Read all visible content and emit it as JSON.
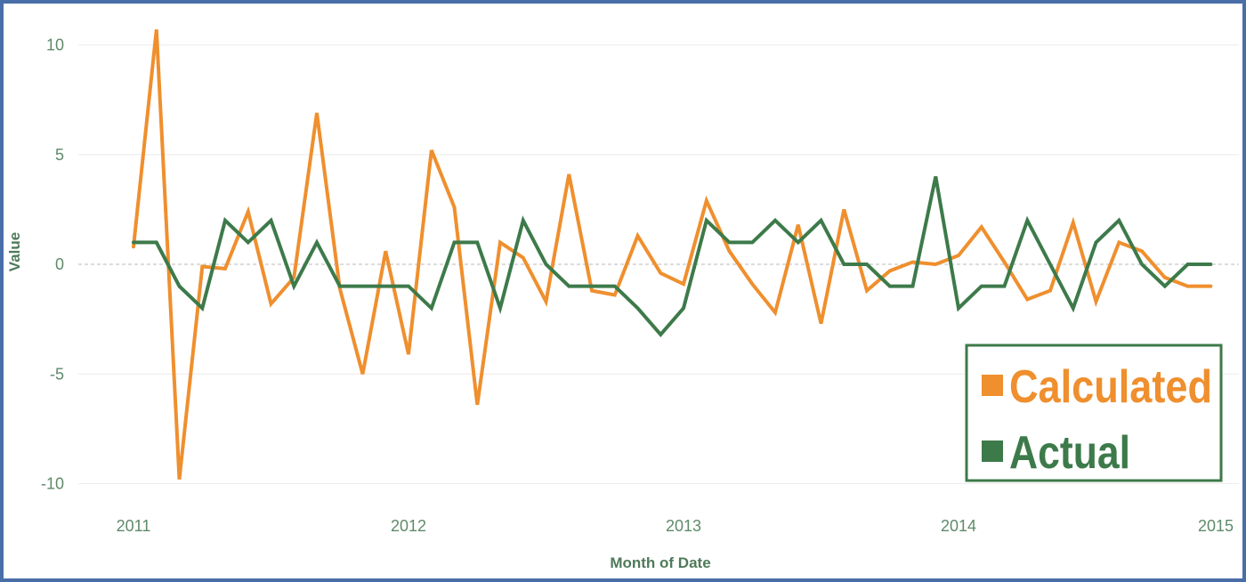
{
  "chart_data": {
    "type": "line",
    "xlabel": "Month of Date",
    "ylabel": "Value",
    "x_ticks": [
      "2011",
      "2012",
      "2013",
      "2014",
      "2015"
    ],
    "y_ticks": [
      "10",
      "5",
      "0",
      "-5",
      "-10"
    ],
    "xlim": [
      "2010-11",
      "2015-01"
    ],
    "ylim": [
      -11,
      11
    ],
    "grid": "horizontal",
    "legend_position": "bottom-right",
    "x": [
      "2011-01",
      "2011-02",
      "2011-03",
      "2011-04",
      "2011-05",
      "2011-06",
      "2011-07",
      "2011-08",
      "2011-09",
      "2011-10",
      "2011-11",
      "2011-12",
      "2012-01",
      "2012-02",
      "2012-03",
      "2012-04",
      "2012-05",
      "2012-06",
      "2012-07",
      "2012-08",
      "2012-09",
      "2012-10",
      "2012-11",
      "2012-12",
      "2013-01",
      "2013-02",
      "2013-03",
      "2013-04",
      "2013-05",
      "2013-06",
      "2013-07",
      "2013-08",
      "2013-09",
      "2013-10",
      "2013-11",
      "2013-12",
      "2014-01",
      "2014-02",
      "2014-03",
      "2014-04",
      "2014-05",
      "2014-06",
      "2014-07",
      "2014-08",
      "2014-09",
      "2014-10",
      "2014-11",
      "2014-12"
    ],
    "series": [
      {
        "name": "Calculated",
        "color": "#ef8f2e",
        "values": [
          0.8,
          10.7,
          -9.8,
          -0.1,
          -0.2,
          2.4,
          -1.8,
          -0.6,
          6.9,
          -1.1,
          -5.0,
          0.6,
          -4.1,
          5.2,
          2.6,
          -6.4,
          1.0,
          0.3,
          -1.7,
          4.1,
          -1.2,
          -1.4,
          1.3,
          -0.4,
          -0.9,
          2.9,
          0.6,
          -0.9,
          -2.2,
          1.8,
          -2.7,
          2.5,
          -1.2,
          -0.3,
          0.1,
          0.0,
          0.4,
          1.7,
          0.1,
          -1.6,
          -1.2,
          1.9,
          -1.7,
          1.0,
          0.6,
          -0.6,
          -1.0,
          -1.0
        ]
      },
      {
        "name": "Actual",
        "color": "#3d7a4a",
        "values": [
          1,
          1,
          -1,
          -2,
          2,
          1,
          2,
          -1,
          1,
          -1,
          -1,
          -1,
          -1,
          -2,
          1,
          1,
          -2,
          2,
          0,
          -1,
          -1,
          -1,
          -2,
          -3.2,
          -2,
          2,
          1,
          1,
          2,
          1,
          2,
          0,
          0,
          -1,
          -1,
          4,
          -2,
          -1,
          -1,
          2,
          0,
          -2,
          1,
          2,
          0,
          -1,
          0,
          0
        ]
      }
    ]
  }
}
